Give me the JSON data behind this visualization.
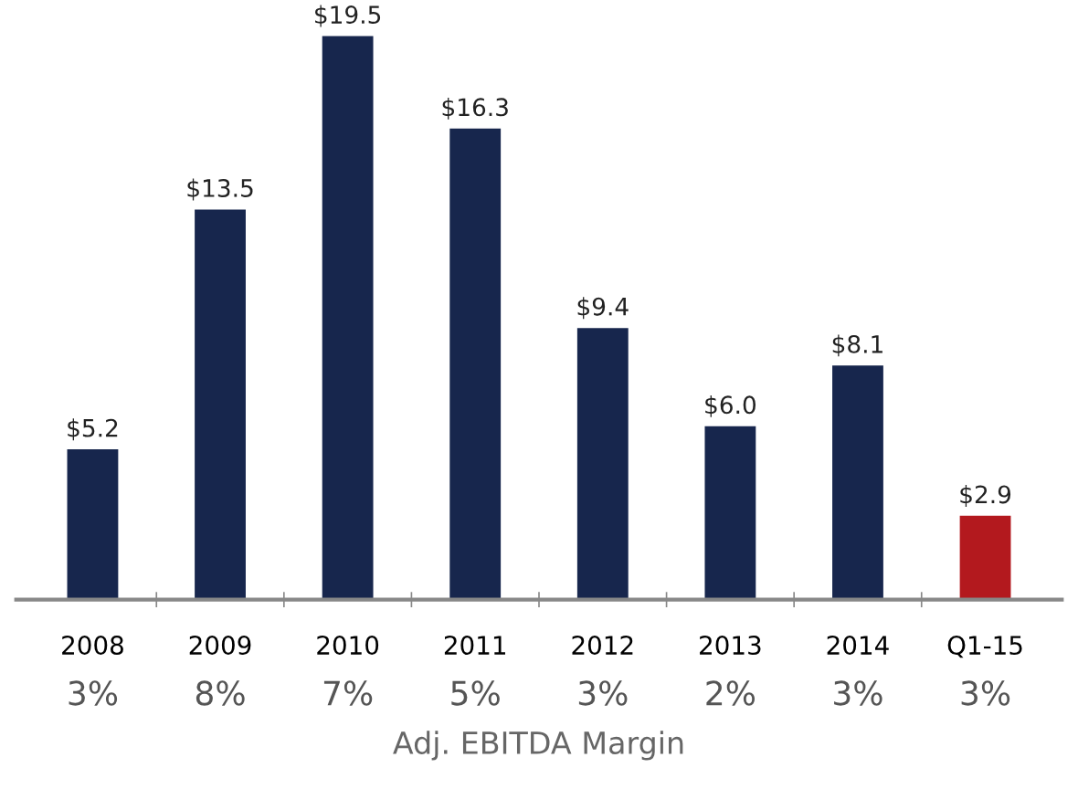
{
  "chart_data": {
    "type": "bar",
    "categories": [
      "2008",
      "2009",
      "2010",
      "2011",
      "2012",
      "2013",
      "2014",
      "Q1-15"
    ],
    "values": [
      5.2,
      13.5,
      19.5,
      16.3,
      9.4,
      6.0,
      8.1,
      2.9
    ],
    "colors": [
      "#17264d",
      "#17264d",
      "#17264d",
      "#17264d",
      "#17264d",
      "#17264d",
      "#17264d",
      "#b3191e"
    ],
    "value_labels": [
      "$5.2",
      "$13.5",
      "$19.5",
      "$16.3",
      "$9.4",
      "$6.0",
      "$8.1",
      "$2.9"
    ],
    "xlabel": "Adj. EBITDA Margin",
    "annotations": [
      "3%",
      "8%",
      "7%",
      "5%",
      "3%",
      "2%",
      "3%",
      "3%"
    ],
    "grid": false,
    "legend": false
  }
}
